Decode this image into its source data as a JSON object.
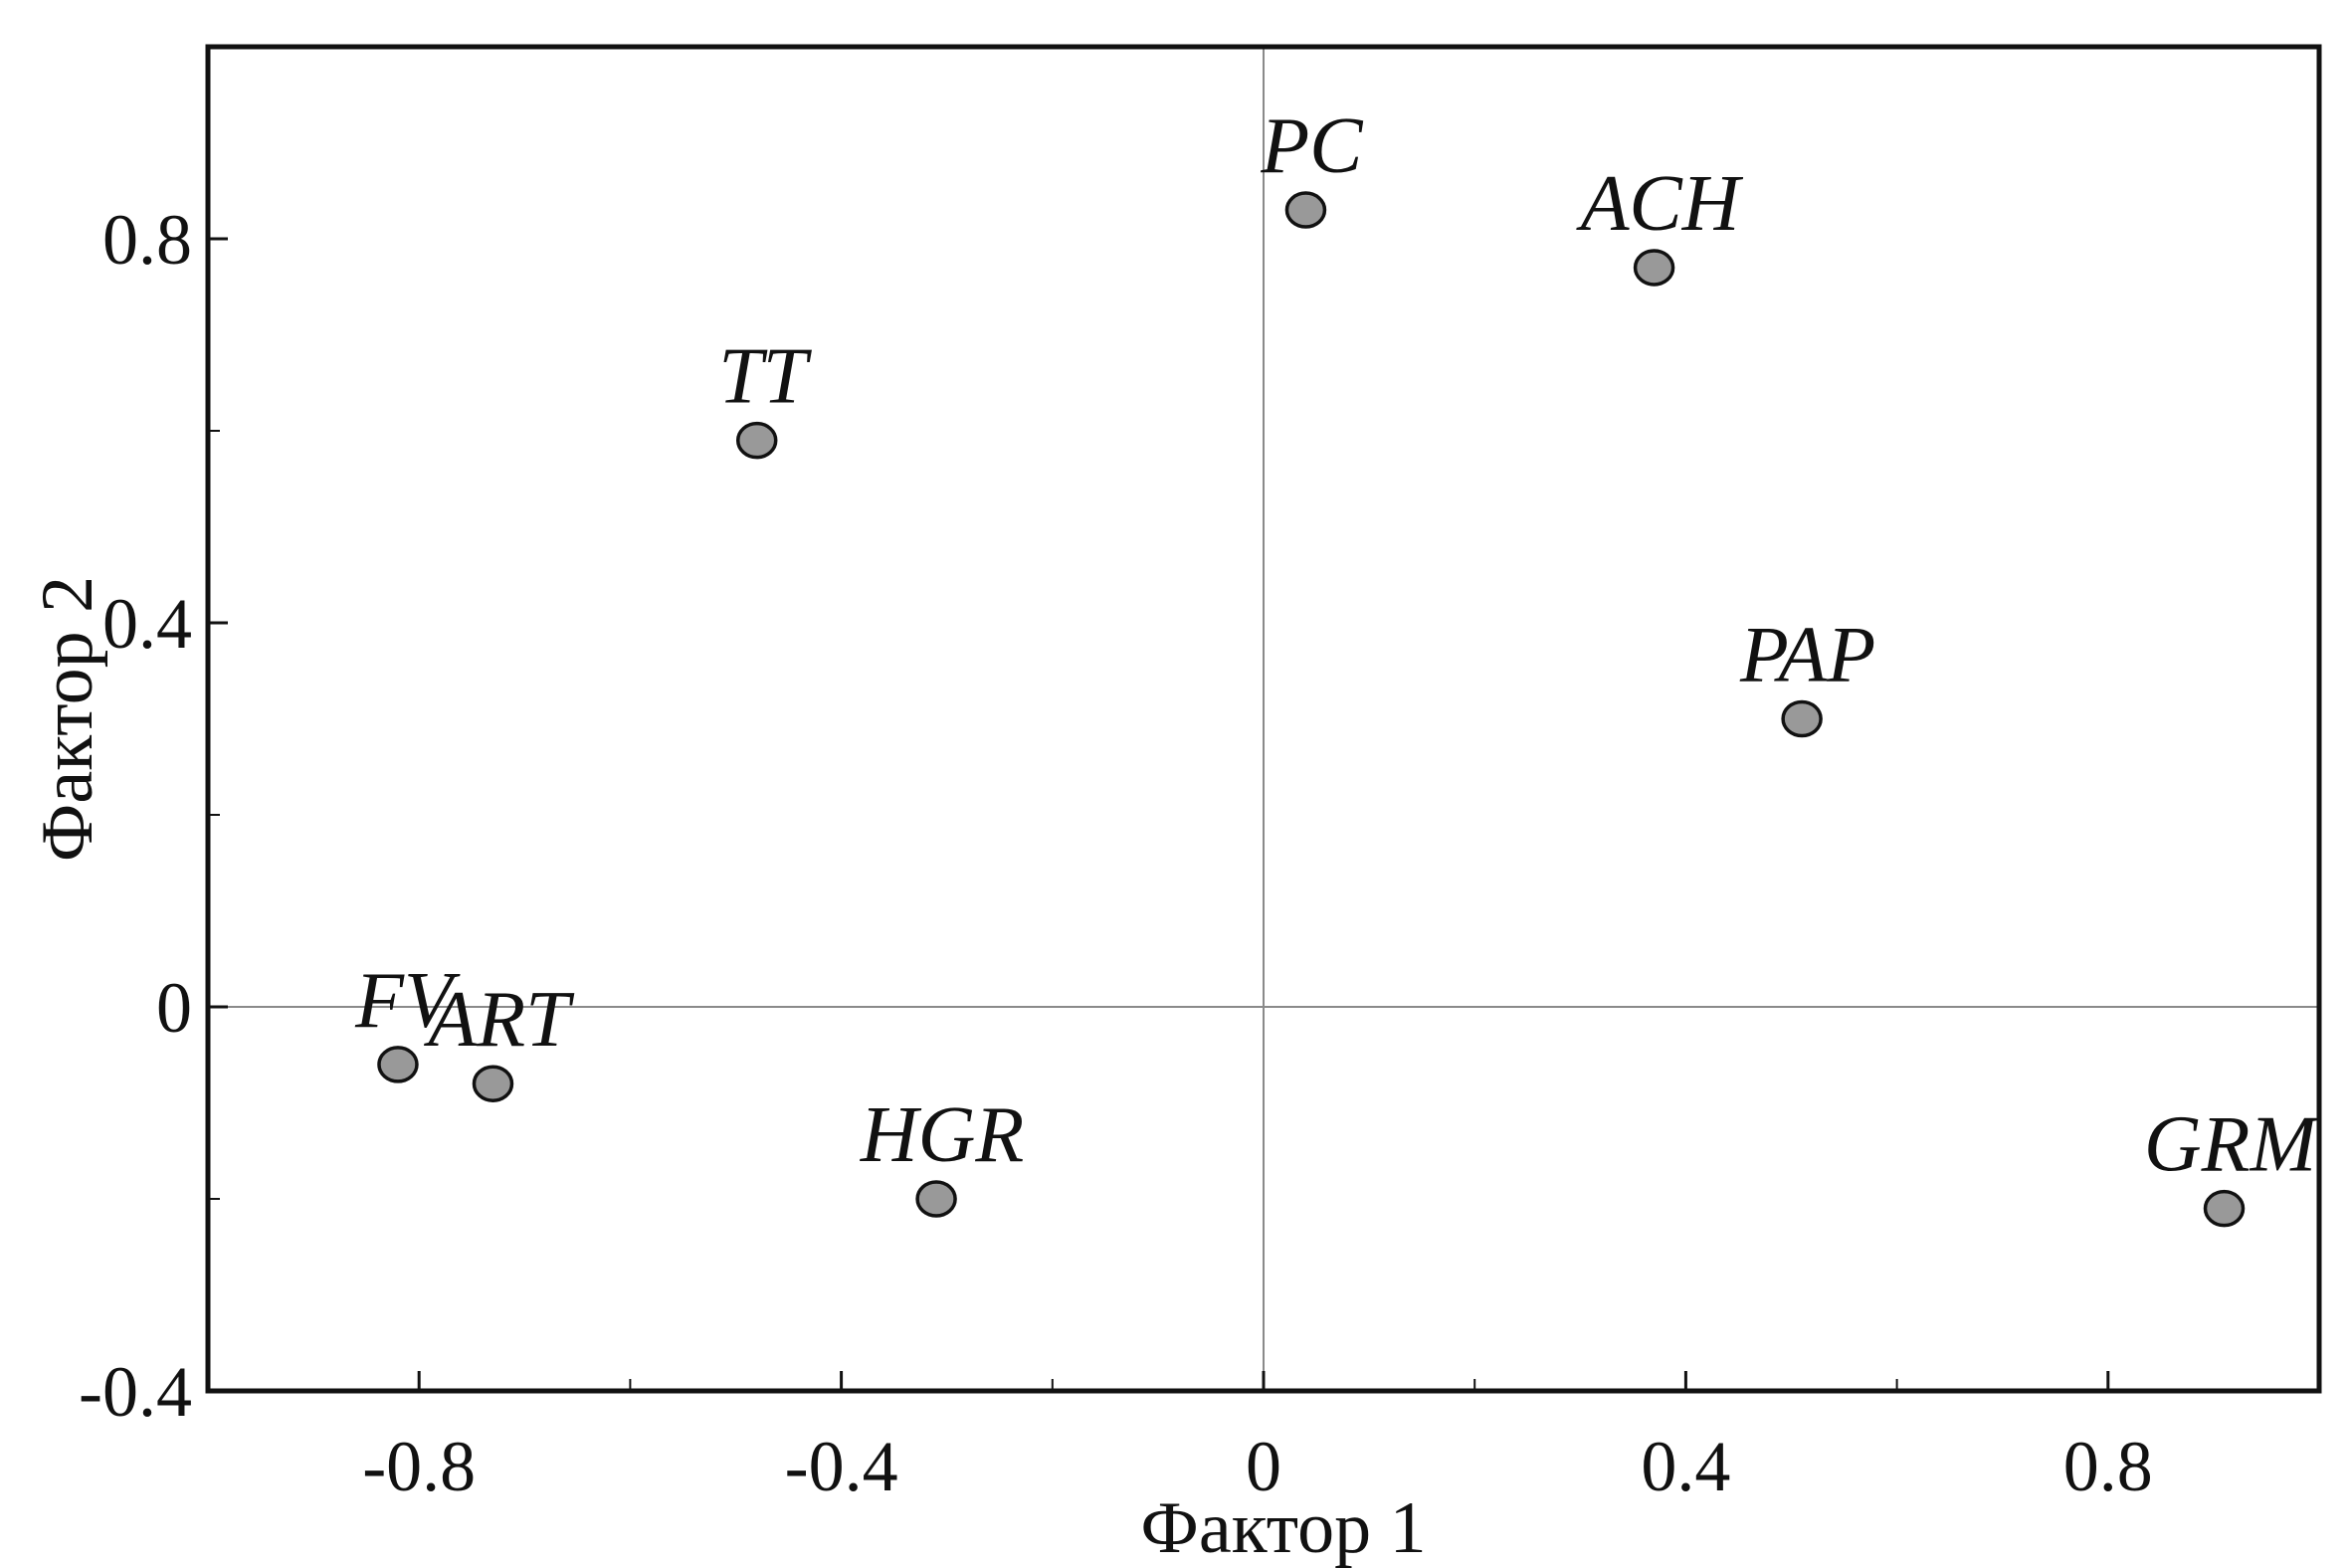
{
  "chart_data": {
    "type": "scatter",
    "title": "",
    "xlabel": "Фактор 1",
    "ylabel": "Фактор 2",
    "xlim": [
      -1.0,
      1.0
    ],
    "ylim": [
      -0.4,
      1.0
    ],
    "x_ticks": [
      -0.8,
      -0.4,
      0,
      0.4,
      0.8
    ],
    "x_tick_labels": [
      "-0.8",
      "-0.4",
      "0",
      "0.4",
      "0.8"
    ],
    "y_ticks": [
      -0.4,
      0,
      0.4,
      0.8
    ],
    "y_tick_labels": [
      "-0.4",
      "0",
      "0.4",
      "0.8"
    ],
    "x_minor_ticks": [
      -0.6,
      -0.2,
      0.2,
      0.6
    ],
    "y_minor_ticks": [
      -0.2,
      0.2,
      0.6
    ],
    "reference_lines": {
      "x": 0,
      "y": 0
    },
    "grid": false,
    "marker_fill": "#999999",
    "marker_stroke": "#111111",
    "points": [
      {
        "label": "PC",
        "x": 0.04,
        "y": 0.83
      },
      {
        "label": "ACH",
        "x": 0.37,
        "y": 0.77
      },
      {
        "label": "TT",
        "x": -0.48,
        "y": 0.59
      },
      {
        "label": "PAP",
        "x": 0.51,
        "y": 0.3
      },
      {
        "label": "FV",
        "x": -0.82,
        "y": -0.06
      },
      {
        "label": "ART",
        "x": -0.73,
        "y": -0.08
      },
      {
        "label": "HGR",
        "x": -0.31,
        "y": -0.2
      },
      {
        "label": "GRM",
        "x": 0.91,
        "y": -0.21
      }
    ]
  }
}
